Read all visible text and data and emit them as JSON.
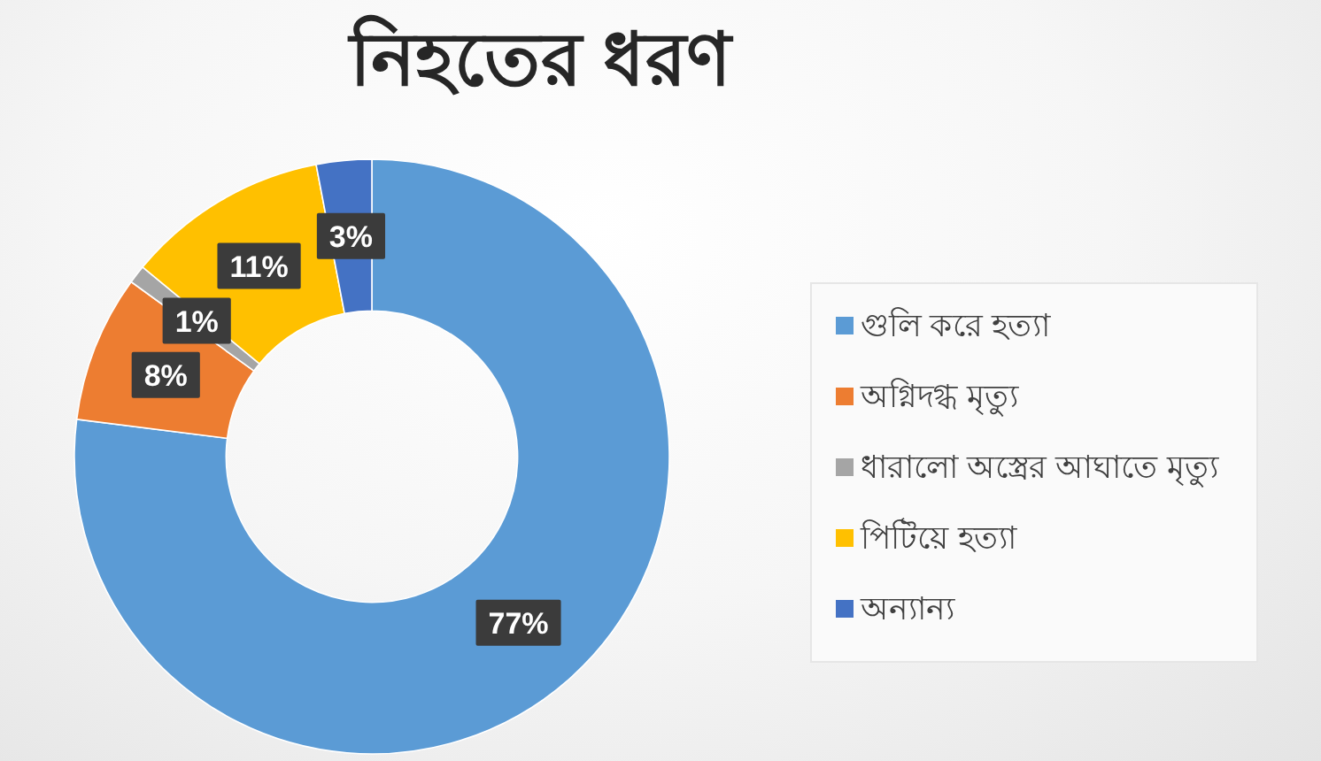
{
  "chart_data": {
    "type": "donut",
    "title": "নিহতের ধরণ",
    "categories": [
      "গুলি করে হত্যা",
      "অগ্নিদগ্ধ মৃত্যু",
      "ধারালো অস্ত্রের আঘাতে মৃত্যু",
      "পিটিয়ে হত্যা",
      "অন্যান্য"
    ],
    "values": [
      77,
      8,
      1,
      11,
      3
    ],
    "colors": [
      "#5b9bd5",
      "#ed7d31",
      "#a5a5a5",
      "#ffc000",
      "#4472c4"
    ],
    "value_labels": [
      "77%",
      "8%",
      "1%",
      "11%",
      "3%"
    ],
    "legend": "right"
  }
}
